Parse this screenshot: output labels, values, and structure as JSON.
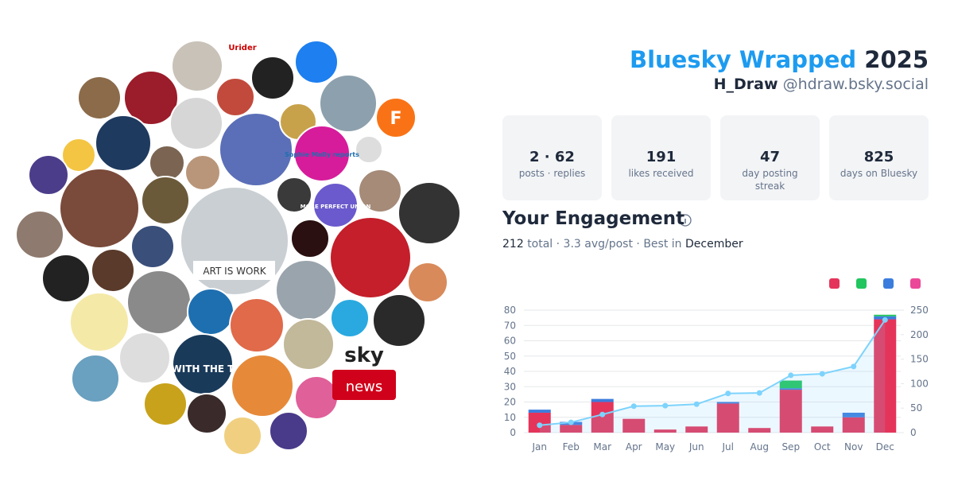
{
  "header": {
    "title_brand": "Bluesky Wrapped",
    "title_year": "2025",
    "display_name": "H_Draw",
    "handle": "@hdraw.bsky.social"
  },
  "stats": [
    {
      "value": "2 · 62",
      "label": "posts · replies"
    },
    {
      "value": "191",
      "label": "likes received"
    },
    {
      "value": "47",
      "label": "day posting streak"
    },
    {
      "value": "825",
      "label": "days on Bluesky"
    }
  ],
  "engagement": {
    "heading": "Your Engagement",
    "total": "212",
    "summary": "total · 3.3 avg/post · Best in",
    "best": "December"
  },
  "avatar_texts": [
    "ART IS WORK",
    "Sophie Molly reports",
    "MORE PERFECT UNION",
    "sky",
    "news",
    "WITH THE T",
    "F",
    "Urider"
  ],
  "chart_data": {
    "type": "bar",
    "categories": [
      "Jan",
      "Feb",
      "Mar",
      "Apr",
      "May",
      "Jun",
      "Jul",
      "Aug",
      "Sep",
      "Oct",
      "Nov",
      "Dec"
    ],
    "series": [
      {
        "color": "#e5345a",
        "values": [
          13,
          5,
          20,
          9,
          2,
          4,
          19,
          3,
          28,
          4,
          10,
          74
        ]
      },
      {
        "color": "#3b7ddd",
        "values": [
          2,
          2,
          2,
          0,
          0,
          0,
          1,
          0,
          1,
          0,
          3,
          2
        ]
      },
      {
        "color": "#22c55e",
        "values": [
          0,
          0,
          0,
          0,
          0,
          0,
          0,
          0,
          5,
          0,
          0,
          1
        ]
      },
      {
        "color": "#ec4899",
        "values": [
          0,
          0,
          0,
          0,
          0,
          0,
          0,
          0,
          0,
          0,
          0,
          0
        ]
      },
      {
        "color": "#7dd3fc",
        "axis": "y2",
        "values": [
          15,
          21,
          37,
          54,
          55,
          58,
          80,
          81,
          117,
          120,
          135,
          230
        ]
      }
    ],
    "ylim": [
      0,
      80
    ],
    "yticks": [
      0,
      10,
      20,
      30,
      40,
      50,
      60,
      70,
      80
    ],
    "y2lim": [
      0,
      250
    ],
    "y2ticks": [
      0,
      50,
      100,
      150,
      200,
      250
    ],
    "grid": true
  }
}
